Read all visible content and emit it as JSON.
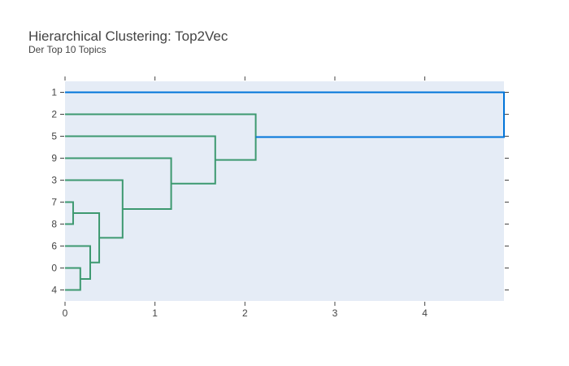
{
  "chart_data": {
    "type": "dendrogram",
    "title": "Hierarchical Clustering: Top2Vec",
    "subtitle": "Der Top 10 Topics",
    "xlabel": "",
    "ylabel": "",
    "xlim": [
      0,
      4.88
    ],
    "x_ticks": [
      0,
      1,
      2,
      3,
      4
    ],
    "x_tick_labels": [
      "0",
      "1",
      "2",
      "3",
      "4"
    ],
    "y_categories": [
      "1",
      "2",
      "5",
      "9",
      "3",
      "7",
      "8",
      "6",
      "0",
      "4"
    ],
    "grid": false,
    "orientation": "horizontal",
    "colors": {
      "plot_background": "#e5ecf6",
      "cluster_color": "#3d9970",
      "root_color": "#0074d9"
    },
    "merges": [
      {
        "left": "7",
        "right": "8",
        "distance": 0.09
      },
      {
        "left": "0",
        "right": "4",
        "distance": 0.17
      },
      {
        "left": "6",
        "right": "0,4",
        "distance": 0.28
      },
      {
        "left": "7,8",
        "right": "6,0,4",
        "distance": 0.38
      },
      {
        "left": "3",
        "right": "7,8,6,0,4",
        "distance": 0.64
      },
      {
        "left": "9",
        "right": "3,7,8,6,0,4",
        "distance": 1.18
      },
      {
        "left": "5",
        "right": "9,3,7,8,6,0,4",
        "distance": 1.67
      },
      {
        "left": "2",
        "right": "5,9,3,7,8,6,0,4",
        "distance": 2.12
      },
      {
        "left": "1",
        "right": "2,5,9,3,7,8,6,0,4",
        "distance": 4.88
      }
    ]
  }
}
